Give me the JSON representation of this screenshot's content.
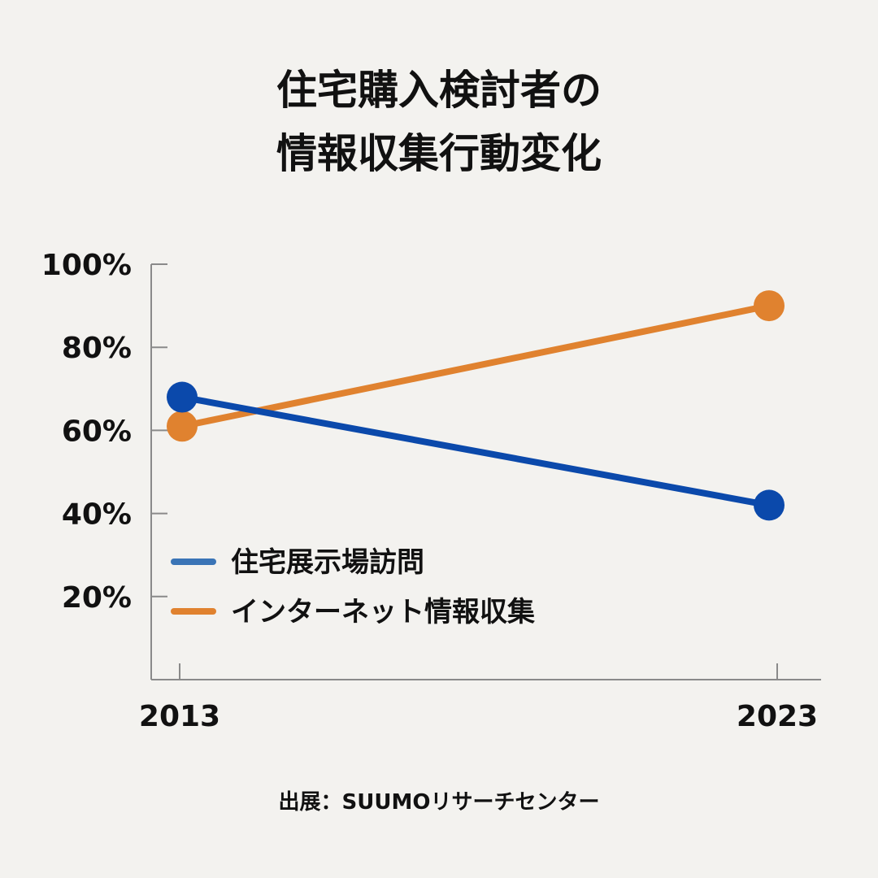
{
  "chart_data": {
    "type": "line",
    "title": [
      "住宅購入検討者の",
      "情報収集行動変化"
    ],
    "x": [
      "2013",
      "2023"
    ],
    "ylim": [
      0,
      100
    ],
    "yticks": [
      "20%",
      "40%",
      "60%",
      "80%",
      "100%"
    ],
    "ytick_values": [
      20,
      40,
      60,
      80,
      100
    ],
    "grid": false,
    "legend_position": "lower-left",
    "series": [
      {
        "name": "住宅展示場訪問",
        "values": [
          68,
          42
        ],
        "color": "#0b49ab",
        "legend_color": "#3a74b6"
      },
      {
        "name": "インターネット情報収集",
        "values": [
          61,
          90
        ],
        "color": "#e0822f",
        "legend_color": "#e0822f"
      }
    ],
    "source": "出展：SUUMOリサーチセンター"
  }
}
